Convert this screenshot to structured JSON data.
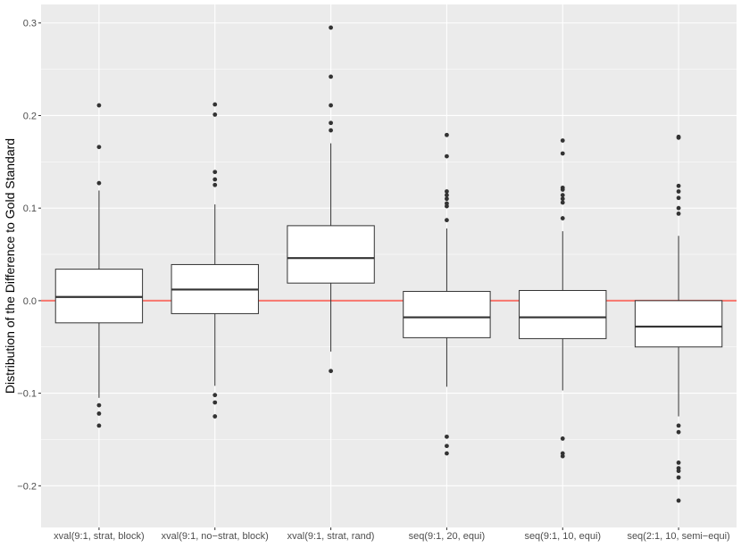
{
  "chart_data": {
    "type": "boxplot",
    "title": "",
    "xlabel": "",
    "ylabel": "Distribution of the Difference to Gold Standard",
    "ylim": [
      -0.245,
      0.32
    ],
    "yticks": [
      -0.2,
      -0.1,
      0.0,
      0.1,
      0.2,
      0.3
    ],
    "ytick_labels": [
      "−0.2",
      "−0.1",
      "0.0",
      "0.1",
      "0.2",
      "0.3"
    ],
    "reference_line": {
      "y": 0.0,
      "color": "#f8766d"
    },
    "colors": {
      "panel": "#ebebeb",
      "grid_major": "#ffffff",
      "box_fill": "#ffffff",
      "box_stroke": "#333333",
      "point": "#333333"
    },
    "categories": [
      "xval(9:1, strat, block)",
      "xval(9:1, no−strat, block)",
      "xval(9:1, strat, rand)",
      "seq(9:1, 20, equi)",
      "seq(9:1, 10, equi)",
      "seq(2:1, 10, semi−equi)"
    ],
    "boxes": [
      {
        "category": "xval(9:1, strat, block)",
        "whisker_low": -0.105,
        "q1": -0.024,
        "median": 0.004,
        "q3": 0.034,
        "whisker_high": 0.119,
        "outliers": [
          0.211,
          0.166,
          0.127,
          -0.113,
          -0.122,
          -0.135
        ]
      },
      {
        "category": "xval(9:1, no−strat, block)",
        "whisker_low": -0.092,
        "q1": -0.014,
        "median": 0.012,
        "q3": 0.039,
        "whisker_high": 0.104,
        "outliers": [
          0.212,
          0.201,
          0.139,
          0.131,
          0.125,
          -0.102,
          -0.11,
          -0.125
        ]
      },
      {
        "category": "xval(9:1, strat, rand)",
        "whisker_low": -0.055,
        "q1": 0.019,
        "median": 0.046,
        "q3": 0.081,
        "whisker_high": 0.17,
        "outliers": [
          0.295,
          0.242,
          0.211,
          0.192,
          0.184,
          -0.076
        ]
      },
      {
        "category": "seq(9:1, 20, equi)",
        "whisker_low": -0.093,
        "q1": -0.04,
        "median": -0.018,
        "q3": 0.01,
        "whisker_high": 0.078,
        "outliers": [
          0.179,
          0.156,
          0.118,
          0.114,
          0.11,
          0.105,
          0.102,
          0.087,
          -0.147,
          -0.157,
          -0.165
        ]
      },
      {
        "category": "seq(9:1, 10, equi)",
        "whisker_low": -0.097,
        "q1": -0.041,
        "median": -0.018,
        "q3": 0.011,
        "whisker_high": 0.075,
        "outliers": [
          0.173,
          0.159,
          0.122,
          0.12,
          0.114,
          0.11,
          0.106,
          0.089,
          -0.149,
          -0.165,
          -0.168
        ]
      },
      {
        "category": "seq(2:1, 10, semi−equi)",
        "whisker_low": -0.125,
        "q1": -0.05,
        "median": -0.028,
        "q3": 0.0,
        "whisker_high": 0.07,
        "outliers": [
          0.177,
          0.176,
          0.124,
          0.118,
          0.111,
          0.1,
          0.094,
          -0.135,
          -0.142,
          -0.175,
          -0.181,
          -0.184,
          -0.191,
          -0.216
        ]
      }
    ]
  }
}
